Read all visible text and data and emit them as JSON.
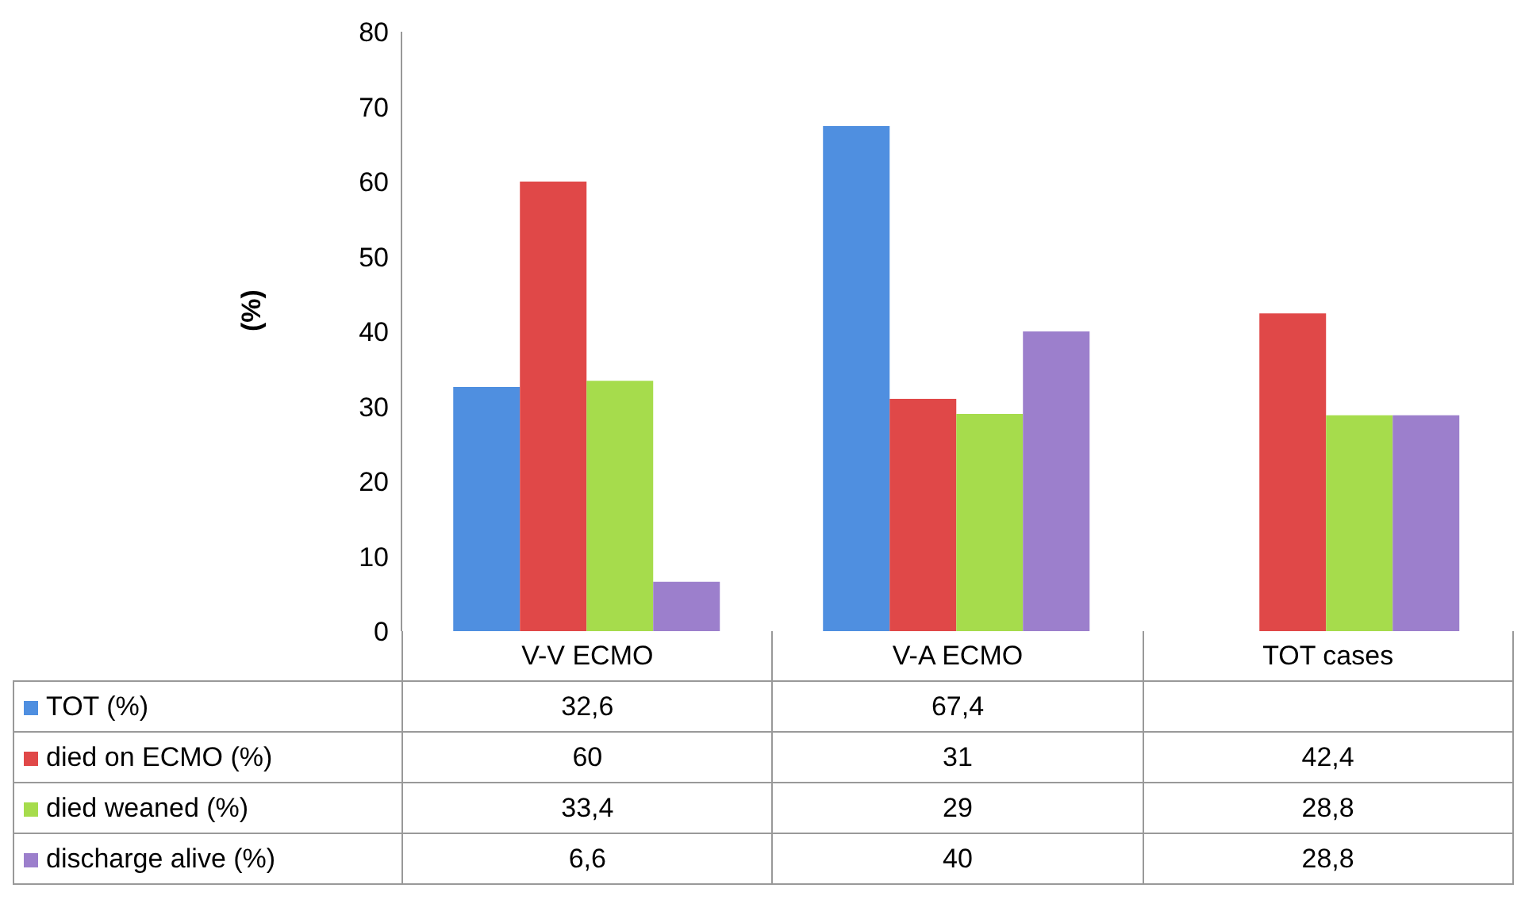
{
  "chart_data": {
    "type": "bar",
    "ylabel": "(%)",
    "categories": [
      "V-V ECMO",
      "V-A ECMO",
      "TOT cases"
    ],
    "series": [
      {
        "name": "TOT (%)",
        "color": "#4f8fe0",
        "values": [
          32.6,
          67.4,
          null
        ],
        "value_labels": [
          "32,6",
          "67,4",
          null
        ]
      },
      {
        "name": "died on ECMO (%)",
        "color": "#e04848",
        "values": [
          60,
          31,
          42.4
        ],
        "value_labels": [
          "60",
          "31",
          "42,4"
        ]
      },
      {
        "name": "died weaned (%)",
        "color": "#a6dc4c",
        "values": [
          33.4,
          29,
          28.8
        ],
        "value_labels": [
          "33,4",
          "29",
          "28,8"
        ]
      },
      {
        "name": "discharge alive (%)",
        "color": "#9c7fcc",
        "values": [
          6.6,
          40,
          28.8
        ],
        "value_labels": [
          "6,6",
          "40",
          "28,8"
        ]
      }
    ],
    "ylim": [
      0,
      80
    ],
    "yticks": [
      0,
      10,
      20,
      30,
      40,
      50,
      60,
      70,
      80
    ],
    "grid": false,
    "legend": "bottom"
  }
}
